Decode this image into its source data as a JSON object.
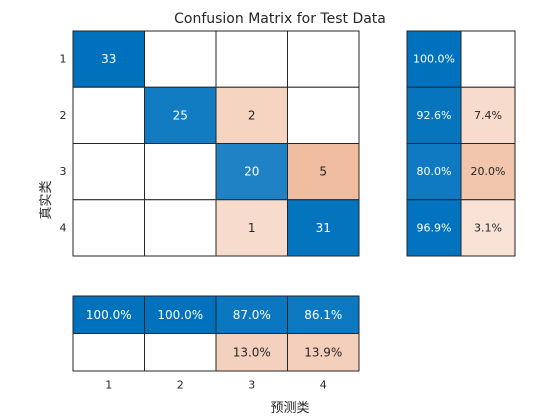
{
  "chart_data": {
    "type": "heatmap",
    "title": "Confusion Matrix for Test Data",
    "ylabel": "真实类",
    "xlabel": "预测类",
    "class_labels": [
      "1",
      "2",
      "3",
      "4"
    ],
    "matrix": [
      [
        33,
        0,
        0,
        0
      ],
      [
        0,
        25,
        2,
        0
      ],
      [
        0,
        0,
        20,
        5
      ],
      [
        0,
        0,
        1,
        31
      ]
    ],
    "row_summary": [
      [
        "100.0%",
        ""
      ],
      [
        "92.6%",
        "7.4%"
      ],
      [
        "80.0%",
        "20.0%"
      ],
      [
        "96.9%",
        "3.1%"
      ]
    ],
    "column_summary": [
      [
        "100.0%",
        "100.0%",
        "87.0%",
        "86.1%"
      ],
      [
        "",
        "",
        "13.0%",
        "13.9%"
      ]
    ],
    "colors": {
      "correct_high": "#0072BD",
      "correct_mid": "#3D8FCF",
      "error_light": "#F7DDD0",
      "error_mid": "#F2C2AA",
      "grid_line": "#262626",
      "white_text": "#FFFFFF",
      "dark_text": "#262626"
    }
  }
}
